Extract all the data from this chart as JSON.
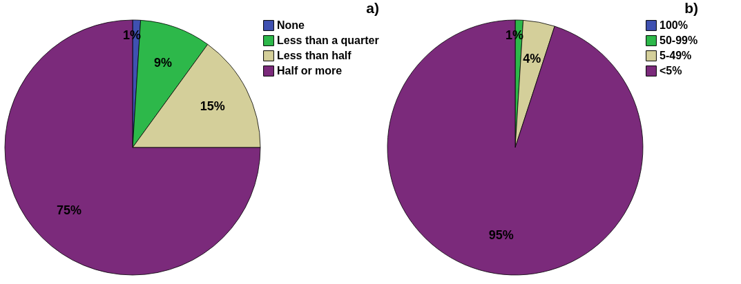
{
  "chart_data": [
    {
      "type": "pie",
      "title": "a)",
      "legend": "right",
      "categories": [
        "None",
        "Less than a quarter",
        "Less than half",
        "Half or more"
      ],
      "values": [
        1,
        9,
        15,
        75
      ],
      "colors": [
        "#3f51b1",
        "#2db84a",
        "#d4cf9a",
        "#7b2a7b"
      ],
      "value_labels": [
        "1%",
        "9%",
        "15%",
        "75%"
      ]
    },
    {
      "type": "pie",
      "title": "b)",
      "legend": "right",
      "categories": [
        "100%",
        "50-99%",
        "5-49%",
        "<5%"
      ],
      "values": [
        0,
        1,
        4,
        95
      ],
      "colors": [
        "#3f51b1",
        "#2db84a",
        "#d4cf9a",
        "#7b2a7b"
      ],
      "value_labels": [
        null,
        "1%",
        "4%",
        "95%"
      ]
    }
  ]
}
